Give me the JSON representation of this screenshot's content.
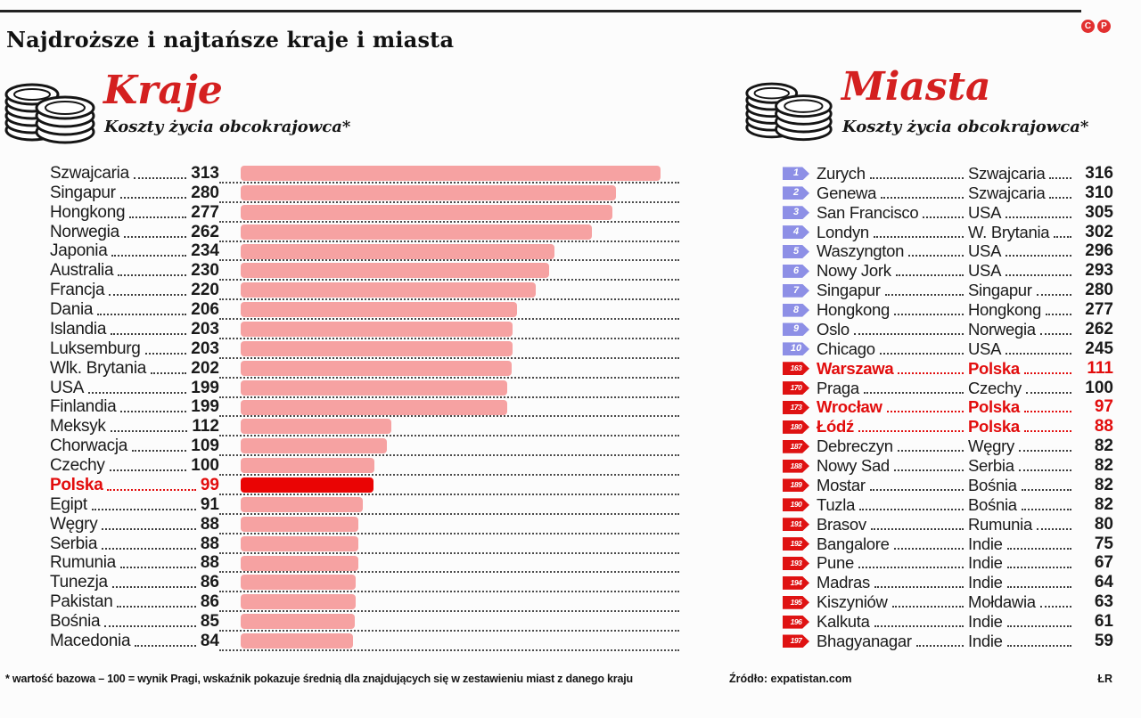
{
  "page": {
    "title": "Najdroższe i najtańsze kraje i miasta",
    "footnote": "* wartość bazowa – 100 = wynik Pragi, wskaźnik pokazuje średnią dla znajdujących się w zestawieniu miast z danego kraju",
    "source": "Źródło: expatistan.com",
    "credit": "ŁR",
    "logo_letters": {
      "c": "C",
      "p": "P"
    }
  },
  "sections": {
    "countries": {
      "title": "Kraje",
      "subtitle": "Koszty życia obcokrajowca*"
    },
    "cities": {
      "title": "Miasta",
      "subtitle": "Koszty życia obcokrajowca*"
    }
  },
  "colors": {
    "bar_pink": "#f6a2a2",
    "bar_red": "#ea0404",
    "text_red": "#e20d0d",
    "badge_blue": "#8d8fe6",
    "badge_red": "#df1212",
    "accent_title": "#d42020"
  },
  "chart_data": [
    {
      "type": "bar",
      "title": "Kraje – Koszty życia obcokrajowca",
      "orientation": "horizontal",
      "xlim": [
        0,
        313
      ],
      "grid": "dotted-row-lines",
      "highlight": "Polska",
      "categories": [
        "Szwajcaria",
        "Singapur",
        "Hongkong",
        "Norwegia",
        "Japonia",
        "Australia",
        "Francja",
        "Dania",
        "Islandia",
        "Luksemburg",
        "Wlk. Brytania",
        "USA",
        "Finlandia",
        "Meksyk",
        "Chorwacja",
        "Czechy",
        "Polska",
        "Egipt",
        "Węgry",
        "Serbia",
        "Rumunia",
        "Tunezja",
        "Pakistan",
        "Bośnia",
        "Macedonia"
      ],
      "values": [
        313,
        280,
        277,
        262,
        234,
        230,
        220,
        206,
        203,
        203,
        202,
        199,
        199,
        112,
        109,
        100,
        99,
        91,
        88,
        88,
        88,
        86,
        86,
        85,
        84
      ]
    },
    {
      "type": "table",
      "title": "Miasta – Koszty życia obcokrajowca",
      "columns": [
        "rank",
        "city",
        "country",
        "value"
      ],
      "highlight_cities": [
        "Warszawa",
        "Wrocław",
        "Łódź"
      ],
      "blue_badge_max_rank": 10,
      "rows": [
        [
          1,
          "Zurych",
          "Szwajcaria",
          316
        ],
        [
          2,
          "Genewa",
          "Szwajcaria",
          310
        ],
        [
          3,
          "San Francisco",
          "USA",
          305
        ],
        [
          4,
          "Londyn",
          "W. Brytania",
          302
        ],
        [
          5,
          "Waszyngton",
          "USA",
          296
        ],
        [
          6,
          "Nowy Jork",
          "USA",
          293
        ],
        [
          7,
          "Singapur",
          "Singapur",
          280
        ],
        [
          8,
          "Hongkong",
          "Hongkong",
          277
        ],
        [
          9,
          "Oslo",
          "Norwegia",
          262
        ],
        [
          10,
          "Chicago",
          "USA",
          245
        ],
        [
          163,
          "Warszawa",
          "Polska",
          111
        ],
        [
          170,
          "Praga",
          "Czechy",
          100
        ],
        [
          173,
          "Wrocław",
          "Polska",
          97
        ],
        [
          180,
          "Łódź",
          "Polska",
          88
        ],
        [
          187,
          "Debreczyn",
          "Węgry",
          82
        ],
        [
          188,
          "Nowy Sad",
          "Serbia",
          82
        ],
        [
          189,
          "Mostar",
          "Bośnia",
          82
        ],
        [
          190,
          "Tuzla",
          "Bośnia",
          82
        ],
        [
          191,
          "Brasov",
          "Rumunia",
          80
        ],
        [
          192,
          "Bangalore",
          "Indie",
          75
        ],
        [
          193,
          "Pune",
          "Indie",
          67
        ],
        [
          194,
          "Madras",
          "Indie",
          64
        ],
        [
          195,
          "Kiszyniów",
          "Mołdawia",
          63
        ],
        [
          196,
          "Kalkuta",
          "Indie",
          61
        ],
        [
          197,
          "Bhagyanagar",
          "Indie",
          59
        ]
      ]
    }
  ]
}
